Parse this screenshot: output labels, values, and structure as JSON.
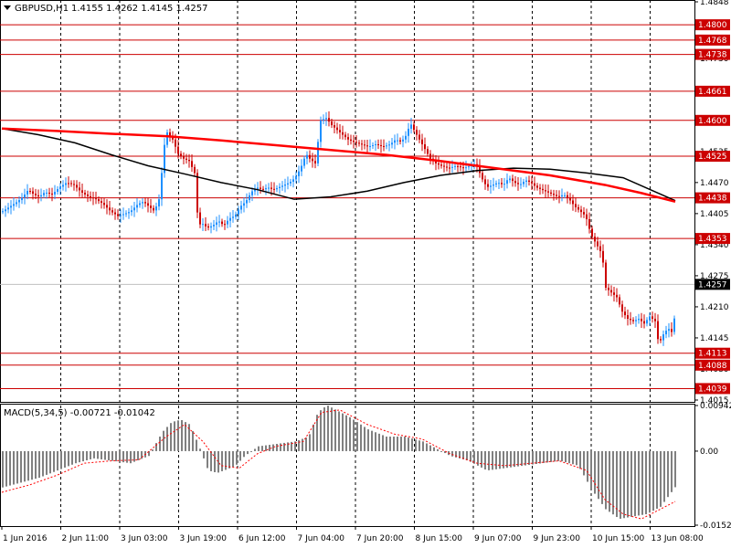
{
  "header": {
    "symbol": "GBPUSD,H1",
    "ohlc": "1.4155 1.4262 1.4145 1.4257"
  },
  "colors": {
    "bull": "#1e90ff",
    "bear": "#cc0000",
    "level_line": "#cc0000",
    "ma_slow": "#ff0000",
    "ma_fast": "#000000",
    "macd_bar": "#808080",
    "macd_signal": "#ff0000",
    "grid": "#000000",
    "price_label_bg": "#cc0000",
    "current_label_bg": "#000000"
  },
  "chart_data": [
    {
      "type": "candlestick",
      "symbol": "GBPUSD",
      "timeframe": "H1",
      "ylim": [
        1.4015,
        1.4848
      ],
      "axis_ticks": [
        "1.4848",
        "1.4795",
        "1.4730",
        "1.4665",
        "1.4600",
        "1.4535",
        "1.4470",
        "1.4405",
        "1.4340",
        "1.4275",
        "1.4210",
        "1.4145",
        "1.4080",
        "1.4015"
      ],
      "x_labels": [
        "1 Jun 2016",
        "2 Jun 11:00",
        "3 Jun 03:00",
        "3 Jun 19:00",
        "6 Jun 12:00",
        "7 Jun 04:00",
        "7 Jun 20:00",
        "8 Jun 15:00",
        "9 Jun 07:00",
        "9 Jun 23:00",
        "10 Jun 15:00",
        "13 Jun 08:00"
      ],
      "horizontal_levels": [
        "1.4800",
        "1.4768",
        "1.4738",
        "1.4661",
        "1.4600",
        "1.4525",
        "1.4438",
        "1.4353",
        "1.4113",
        "1.4088",
        "1.4039"
      ],
      "current_price": "1.4257",
      "close_path": [
        [
          0,
          1.441
        ],
        [
          8,
          1.442
        ],
        [
          16,
          1.443
        ],
        [
          22,
          1.444
        ],
        [
          28,
          1.4455
        ],
        [
          34,
          1.4445
        ],
        [
          40,
          1.444
        ],
        [
          46,
          1.445
        ],
        [
          54,
          1.4445
        ],
        [
          62,
          1.446
        ],
        [
          70,
          1.447
        ],
        [
          78,
          1.4465
        ],
        [
          86,
          1.445
        ],
        [
          94,
          1.444
        ],
        [
          102,
          1.4435
        ],
        [
          110,
          1.4425
        ],
        [
          118,
          1.441
        ],
        [
          126,
          1.44
        ],
        [
          134,
          1.4405
        ],
        [
          140,
          1.441
        ],
        [
          148,
          1.4425
        ],
        [
          154,
          1.443
        ],
        [
          160,
          1.442
        ],
        [
          166,
          1.441
        ],
        [
          172,
          1.444
        ],
        [
          176,
          1.454
        ],
        [
          180,
          1.4575
        ],
        [
          186,
          1.456
        ],
        [
          192,
          1.453
        ],
        [
          198,
          1.452
        ],
        [
          204,
          1.4515
        ],
        [
          210,
          1.449
        ],
        [
          214,
          1.438
        ],
        [
          218,
          1.4385
        ],
        [
          224,
          1.4375
        ],
        [
          230,
          1.438
        ],
        [
          236,
          1.439
        ],
        [
          242,
          1.438
        ],
        [
          248,
          1.4395
        ],
        [
          254,
          1.44
        ],
        [
          260,
          1.442
        ],
        [
          266,
          1.443
        ],
        [
          272,
          1.445
        ],
        [
          278,
          1.446
        ],
        [
          284,
          1.4455
        ],
        [
          290,
          1.446
        ],
        [
          296,
          1.4455
        ],
        [
          302,
          1.446
        ],
        [
          308,
          1.4465
        ],
        [
          314,
          1.447
        ],
        [
          320,
          1.448
        ],
        [
          326,
          1.45
        ],
        [
          332,
          1.453
        ],
        [
          336,
          1.452
        ],
        [
          342,
          1.451
        ],
        [
          348,
          1.46
        ],
        [
          354,
          1.4605
        ],
        [
          360,
          1.459
        ],
        [
          366,
          1.458
        ],
        [
          372,
          1.457
        ],
        [
          378,
          1.456
        ],
        [
          384,
          1.4555
        ],
        [
          392,
          1.455
        ],
        [
          400,
          1.4545
        ],
        [
          408,
          1.455
        ],
        [
          416,
          1.4545
        ],
        [
          424,
          1.455
        ],
        [
          430,
          1.456
        ],
        [
          436,
          1.4555
        ],
        [
          442,
          1.457
        ],
        [
          446,
          1.4595
        ],
        [
          450,
          1.458
        ],
        [
          456,
          1.456
        ],
        [
          462,
          1.454
        ],
        [
          468,
          1.452
        ],
        [
          474,
          1.451
        ],
        [
          480,
          1.4505
        ],
        [
          488,
          1.45
        ],
        [
          496,
          1.4505
        ],
        [
          504,
          1.45
        ],
        [
          512,
          1.4505
        ],
        [
          518,
          1.451
        ],
        [
          524,
          1.448
        ],
        [
          530,
          1.446
        ],
        [
          536,
          1.4465
        ],
        [
          542,
          1.447
        ],
        [
          548,
          1.4465
        ],
        [
          554,
          1.448
        ],
        [
          560,
          1.447
        ],
        [
          566,
          1.4465
        ],
        [
          572,
          1.4475
        ],
        [
          578,
          1.447
        ],
        [
          584,
          1.446
        ],
        [
          590,
          1.4455
        ],
        [
          596,
          1.445
        ],
        [
          602,
          1.4445
        ],
        [
          608,
          1.444
        ],
        [
          614,
          1.4445
        ],
        [
          620,
          1.4435
        ],
        [
          626,
          1.442
        ],
        [
          632,
          1.441
        ],
        [
          638,
          1.44
        ],
        [
          644,
          1.436
        ],
        [
          650,
          1.434
        ],
        [
          656,
          1.432
        ],
        [
          660,
          1.425
        ],
        [
          666,
          1.424
        ],
        [
          672,
          1.423
        ],
        [
          678,
          1.42
        ],
        [
          684,
          1.4185
        ],
        [
          690,
          1.418
        ],
        [
          696,
          1.4185
        ],
        [
          702,
          1.4175
        ],
        [
          708,
          1.419
        ],
        [
          714,
          1.418
        ],
        [
          718,
          1.413
        ],
        [
          722,
          1.415
        ],
        [
          726,
          1.416
        ],
        [
          730,
          1.4165
        ],
        [
          734,
          1.415
        ],
        [
          737,
          1.4257
        ]
      ],
      "ma_slow": [
        [
          0,
          1.4583
        ],
        [
          60,
          1.4578
        ],
        [
          120,
          1.4572
        ],
        [
          180,
          1.4567
        ],
        [
          240,
          1.4558
        ],
        [
          300,
          1.4548
        ],
        [
          360,
          1.4538
        ],
        [
          420,
          1.4528
        ],
        [
          480,
          1.4515
        ],
        [
          540,
          1.45
        ],
        [
          600,
          1.4485
        ],
        [
          660,
          1.4465
        ],
        [
          700,
          1.4448
        ],
        [
          737,
          1.443
        ]
      ],
      "ma_fast": [
        [
          0,
          1.4583
        ],
        [
          40,
          1.457
        ],
        [
          80,
          1.4553
        ],
        [
          120,
          1.4528
        ],
        [
          160,
          1.4505
        ],
        [
          200,
          1.4488
        ],
        [
          240,
          1.447
        ],
        [
          280,
          1.4455
        ],
        [
          320,
          1.4435
        ],
        [
          360,
          1.444
        ],
        [
          400,
          1.4452
        ],
        [
          440,
          1.447
        ],
        [
          480,
          1.4485
        ],
        [
          520,
          1.4495
        ],
        [
          560,
          1.45
        ],
        [
          600,
          1.4498
        ],
        [
          640,
          1.449
        ],
        [
          680,
          1.448
        ],
        [
          737,
          1.4432
        ]
      ]
    },
    {
      "type": "bar",
      "title": "MACD(5,34,5) -0.00721 -0.01042",
      "ylim": [
        -0.01529,
        0.00942
      ],
      "axis_ticks": [
        "0.00942",
        "0.00",
        "-0.01529"
      ],
      "bars": [
        [
          0,
          -0.0075
        ],
        [
          20,
          -0.0065
        ],
        [
          40,
          -0.0055
        ],
        [
          60,
          -0.004
        ],
        [
          80,
          -0.0025
        ],
        [
          100,
          -0.0015
        ],
        [
          120,
          -0.002
        ],
        [
          140,
          -0.0025
        ],
        [
          160,
          -0.001
        ],
        [
          175,
          0.004
        ],
        [
          185,
          0.006
        ],
        [
          195,
          0.0065
        ],
        [
          205,
          0.0055
        ],
        [
          215,
          0.001
        ],
        [
          225,
          -0.004
        ],
        [
          235,
          -0.0045
        ],
        [
          245,
          -0.0038
        ],
        [
          255,
          -0.003
        ],
        [
          265,
          -0.001
        ],
        [
          280,
          0.001
        ],
        [
          300,
          0.0015
        ],
        [
          320,
          0.002
        ],
        [
          335,
          0.003
        ],
        [
          345,
          0.008
        ],
        [
          355,
          0.0095
        ],
        [
          365,
          0.0085
        ],
        [
          380,
          0.007
        ],
        [
          400,
          0.0045
        ],
        [
          420,
          0.003
        ],
        [
          440,
          0.003
        ],
        [
          460,
          0.002
        ],
        [
          475,
          0.0005
        ],
        [
          490,
          -0.001
        ],
        [
          510,
          -0.002
        ],
        [
          530,
          -0.004
        ],
        [
          550,
          -0.0035
        ],
        [
          570,
          -0.003
        ],
        [
          590,
          -0.0025
        ],
        [
          610,
          -0.002
        ],
        [
          630,
          -0.003
        ],
        [
          645,
          -0.008
        ],
        [
          660,
          -0.012
        ],
        [
          675,
          -0.014
        ],
        [
          690,
          -0.0135
        ],
        [
          705,
          -0.013
        ],
        [
          720,
          -0.0115
        ],
        [
          737,
          -0.0072
        ]
      ],
      "signal": [
        [
          0,
          -0.0085
        ],
        [
          30,
          -0.007
        ],
        [
          60,
          -0.005
        ],
        [
          90,
          -0.0025
        ],
        [
          120,
          -0.002
        ],
        [
          150,
          -0.0018
        ],
        [
          180,
          0.003
        ],
        [
          200,
          0.0055
        ],
        [
          220,
          0.002
        ],
        [
          240,
          -0.003
        ],
        [
          260,
          -0.0035
        ],
        [
          280,
          -0.0005
        ],
        [
          300,
          0.001
        ],
        [
          330,
          0.002
        ],
        [
          350,
          0.008
        ],
        [
          370,
          0.0085
        ],
        [
          400,
          0.0055
        ],
        [
          430,
          0.0035
        ],
        [
          460,
          0.0025
        ],
        [
          490,
          -0.0005
        ],
        [
          520,
          -0.0025
        ],
        [
          550,
          -0.003
        ],
        [
          580,
          -0.0025
        ],
        [
          610,
          -0.002
        ],
        [
          640,
          -0.004
        ],
        [
          660,
          -0.01
        ],
        [
          680,
          -0.013
        ],
        [
          700,
          -0.014
        ],
        [
          737,
          -0.0104
        ]
      ]
    }
  ]
}
